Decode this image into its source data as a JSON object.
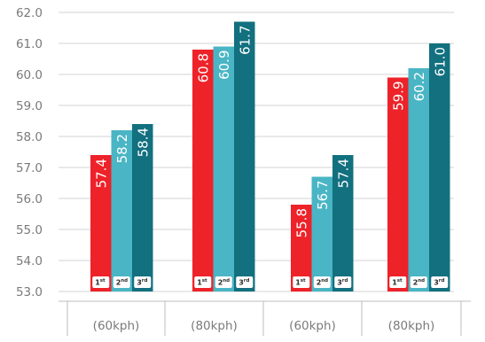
{
  "chart_data": {
    "type": "bar",
    "categories": [
      "(60kph)",
      "(80kph)",
      "(60kph)",
      "(80kph)"
    ],
    "series": [
      {
        "badge": "1",
        "badge_suffix": "st",
        "color": "#ee2229",
        "values": [
          57.4,
          60.8,
          55.8,
          59.9
        ],
        "labels": [
          "57.4",
          "60.8",
          "55.8",
          "59.9"
        ]
      },
      {
        "badge": "2",
        "badge_suffix": "nd",
        "color": "#4ab5c4",
        "values": [
          58.2,
          60.9,
          56.7,
          60.2
        ],
        "labels": [
          "58.2",
          "60.9",
          "56.7",
          "60.2"
        ]
      },
      {
        "badge": "3",
        "badge_suffix": "rd",
        "color": "#12707f",
        "values": [
          58.4,
          61.7,
          57.4,
          61.0
        ],
        "labels": [
          "58.4",
          "61.7",
          "57.4",
          "61.0"
        ]
      }
    ],
    "y_ticks": [
      "53.0",
      "54.0",
      "55.0",
      "56.0",
      "57.0",
      "58.0",
      "59.0",
      "60.0",
      "61.0",
      "62.0"
    ],
    "ylim": [
      53.0,
      62.0
    ],
    "grid": true,
    "legend": "none",
    "title": "",
    "xlabel": "",
    "ylabel": ""
  }
}
